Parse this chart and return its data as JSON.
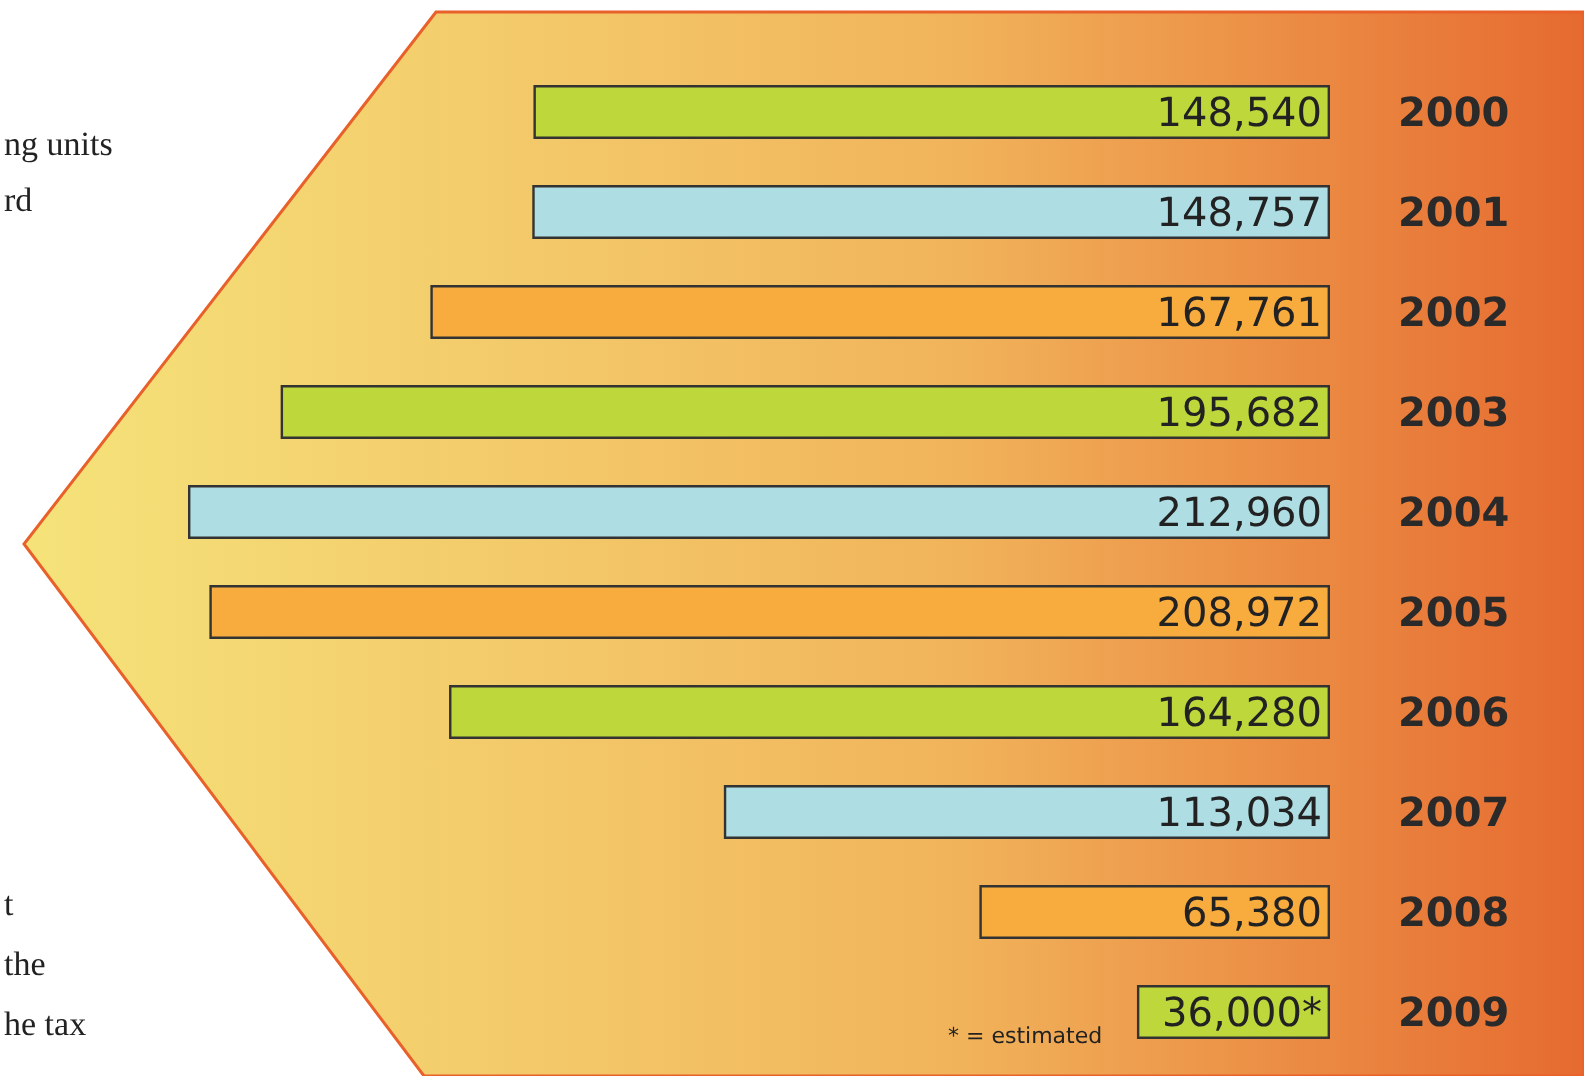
{
  "chart_data": {
    "type": "bar",
    "orientation": "horizontal",
    "categories": [
      "2000",
      "2001",
      "2002",
      "2003",
      "2004",
      "2005",
      "2006",
      "2007",
      "2008",
      "2009"
    ],
    "values": [
      148540,
      148757,
      167761,
      195682,
      212960,
      208972,
      164280,
      113034,
      65380,
      36000
    ],
    "colors": [
      "#bed73a",
      "#aedde3",
      "#f9ac3e",
      "#bed73a",
      "#aedde3",
      "#f9ac3e",
      "#bed73a",
      "#aedde3",
      "#f9ac3e",
      "#bed73a"
    ],
    "value_labels": [
      "148,540",
      "148,757",
      "167,761",
      "195,682",
      "212,960",
      "208,972",
      "164,280",
      "113,034",
      "65,380",
      "36,000*"
    ],
    "annotations": [
      "* = estimated",
      "ng units",
      "rd",
      "t",
      "the",
      "he tax"
    ]
  }
}
